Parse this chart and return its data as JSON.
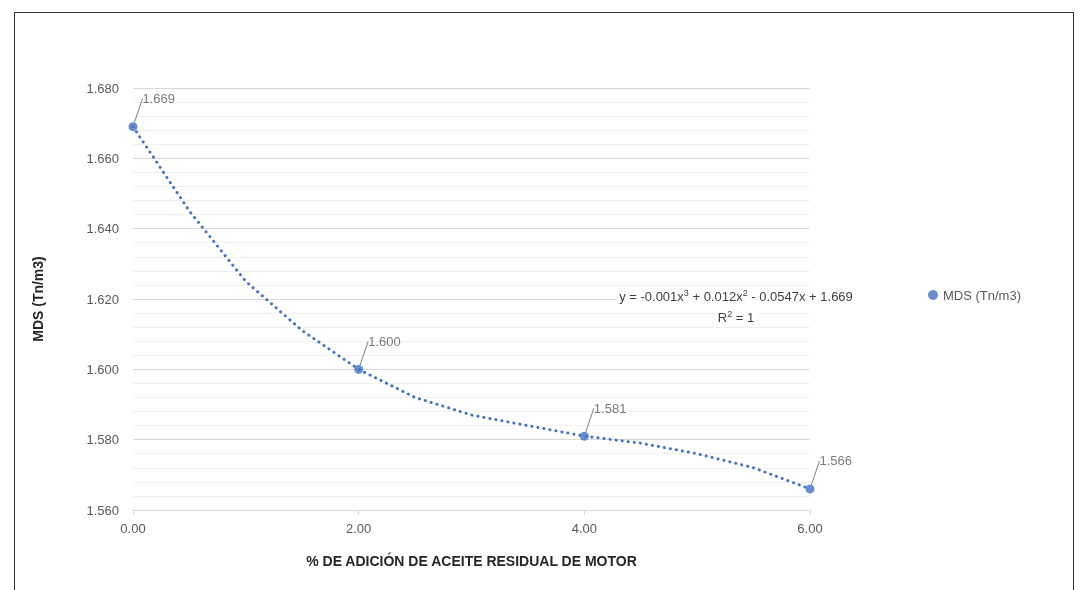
{
  "chart_data": {
    "type": "scatter",
    "xlabel": "% DE ADICIÓN DE ACEITE RESIDUAL DE MOTOR",
    "ylabel": "MDS (Tn/m3)",
    "x": [
      0,
      2,
      4,
      6
    ],
    "series": [
      {
        "name": "MDS (Tn/m3)",
        "color": "#4472c4",
        "values": [
          1.669,
          1.6,
          1.581,
          1.566
        ],
        "value_labels": [
          "1.669",
          "1.600",
          "1.581",
          "1.566"
        ],
        "marker": "circle"
      },
      {
        "type": "line",
        "color": "#4472c4",
        "line_style": "dotted",
        "marker": "none",
        "x": [
          0,
          0.5,
          1,
          1.5,
          2,
          2.5,
          3,
          3.5,
          4,
          4.5,
          5,
          5.5,
          6
        ],
        "values": [
          1.669,
          1.645,
          1.625,
          1.611,
          1.6,
          1.592,
          1.587,
          1.584,
          1.581,
          1.579,
          1.576,
          1.572,
          1.566
        ]
      }
    ],
    "xlim": [
      0,
      6
    ],
    "xticks": [
      {
        "value": 0,
        "label": "0.00"
      },
      {
        "value": 2,
        "label": "2.00"
      },
      {
        "value": 4,
        "label": "4.00"
      },
      {
        "value": 6,
        "label": "6.00"
      }
    ],
    "ylim": [
      1.56,
      1.68
    ],
    "yticks": [
      {
        "value": 1.56,
        "label": "1.560"
      },
      {
        "value": 1.58,
        "label": "1.580"
      },
      {
        "value": 1.6,
        "label": "1.600"
      },
      {
        "value": 1.62,
        "label": "1.620"
      },
      {
        "value": 1.64,
        "label": "1.640"
      },
      {
        "value": 1.66,
        "label": "1.660"
      },
      {
        "value": 1.68,
        "label": "1.680"
      }
    ],
    "grid": "y",
    "legend": "right",
    "annotations": [
      "y = -0.001x$^{3}$ + 0.012x$^{2}$ - 0.0547x + 1.669",
      "R$^{2}$ = 1"
    ]
  }
}
